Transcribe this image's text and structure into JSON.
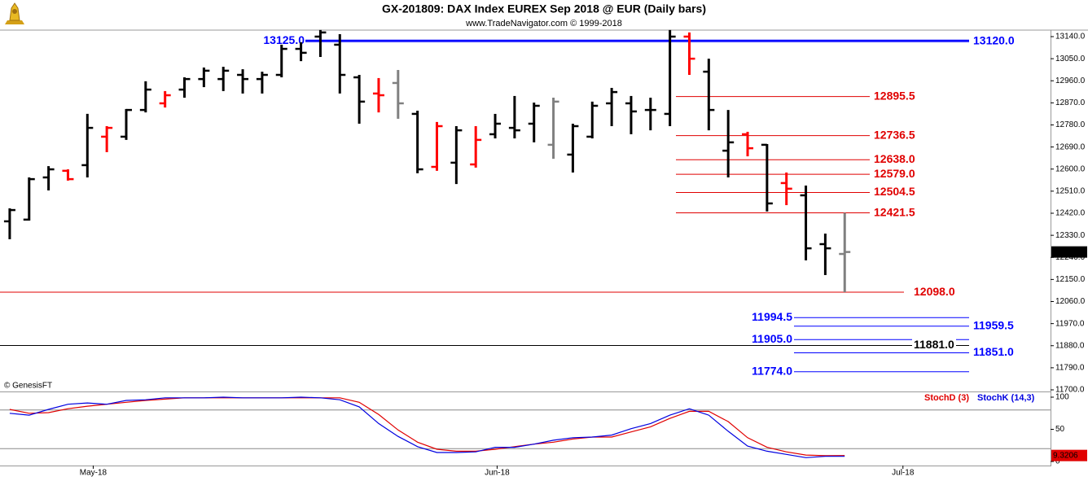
{
  "chart_data": [
    {
      "type": "ohlc",
      "title": "GX-201809:  DAX Index EUREX Sep 2018 @ EUR  (Daily bars)",
      "subtitle": "www.TradeNavigator.com © 1999-2018",
      "source": "© GenesisFT",
      "xlim": [
        -0.5,
        53.6
      ],
      "ylim": [
        11693.4,
        13166.5
      ],
      "yticks": [
        {
          "value": 13140,
          "label": "13140.0"
        },
        {
          "value": 13050,
          "label": "13050.0"
        },
        {
          "value": 12960,
          "label": "12960.0"
        },
        {
          "value": 12870,
          "label": "12870.0"
        },
        {
          "value": 12780,
          "label": "12780.0"
        },
        {
          "value": 12690,
          "label": "12690.0"
        },
        {
          "value": 12600,
          "label": "12600.0"
        },
        {
          "value": 12510,
          "label": "12510.0"
        },
        {
          "value": 12420,
          "label": "12420.0"
        },
        {
          "value": 12330,
          "label": "12330.0"
        },
        {
          "value": 12240,
          "label": "12240.0"
        },
        {
          "value": 12150,
          "label": "12150.0"
        },
        {
          "value": 12060,
          "label": "12060.0"
        },
        {
          "value": 11970,
          "label": "11970.0"
        },
        {
          "value": 11880,
          "label": "11880.0"
        },
        {
          "value": 11790,
          "label": "11790.0"
        },
        {
          "value": 11700,
          "label": "11700.0"
        }
      ],
      "open": [
        12387,
        12394,
        12566,
        12593,
        12616,
        12732,
        12732,
        12841,
        12868,
        12924,
        12967,
        12967,
        12984,
        12967,
        12984,
        13090,
        13140,
        13107,
        12974,
        12908,
        12951,
        12825,
        12609,
        12626,
        12619,
        12742,
        12768,
        12785,
        12699,
        12659,
        12732,
        12868,
        12868,
        12841,
        12825,
        13140,
        12997,
        12675,
        12742,
        12699,
        12543,
        12493,
        12294,
        12254
      ],
      "high": [
        12440,
        12566,
        12612,
        12599,
        12825,
        12775,
        12845,
        12958,
        12918,
        12974,
        13014,
        13017,
        13007,
        12997,
        13107,
        13117,
        13167,
        13150,
        12984,
        12971,
        13004,
        12838,
        12792,
        12775,
        12775,
        12825,
        12898,
        12871,
        12891,
        12785,
        12875,
        12931,
        12898,
        12891,
        13167,
        13157,
        13050,
        12841,
        12752,
        12702,
        12586,
        12533,
        12337,
        12421.5
      ],
      "low": [
        12314,
        12390,
        12513,
        12553,
        12566,
        12669,
        12719,
        12831,
        12851,
        12891,
        12934,
        12918,
        12908,
        12908,
        12974,
        13040,
        13057,
        12908,
        12785,
        12831,
        12805,
        12583,
        12593,
        12539,
        12606,
        12725,
        12725,
        12709,
        12642,
        12586,
        12725,
        12775,
        12742,
        12758,
        12775,
        12984,
        12758,
        12566,
        12652,
        12427,
        12453,
        12228,
        12168,
        12098
      ],
      "close": [
        12433,
        12559,
        12599,
        12559,
        12768,
        12768,
        12841,
        12924,
        12901,
        12967,
        13001,
        13001,
        12967,
        12984,
        13090,
        13074,
        13157,
        12984,
        12875,
        12901,
        12868,
        12599,
        12775,
        12758,
        12719,
        12785,
        12758,
        12858,
        12875,
        12775,
        12858,
        12914,
        12835,
        12841,
        13140,
        13050,
        12841,
        12709,
        12685,
        12460,
        12520,
        12277,
        12277,
        12262
      ],
      "colors": [
        "#000000",
        "#000000",
        "#000000",
        "#ff0000",
        "#000000",
        "#ff0000",
        "#000000",
        "#000000",
        "#ff0000",
        "#000000",
        "#000000",
        "#000000",
        "#000000",
        "#000000",
        "#000000",
        "#000000",
        "#000000",
        "#000000",
        "#000000",
        "#ff0000",
        "#808080",
        "#000000",
        "#ff0000",
        "#000000",
        "#ff0000",
        "#000000",
        "#000000",
        "#000000",
        "#808080",
        "#000000",
        "#000000",
        "#000000",
        "#000000",
        "#000000",
        "#000000",
        "#ff0000",
        "#000000",
        "#000000",
        "#ff0000",
        "#000000",
        "#ff0000",
        "#000000",
        "#000000",
        "#808080"
      ],
      "last_price": {
        "value": 12262,
        "label": "12262.0"
      },
      "levels": [
        {
          "value": 13125,
          "label": "13125.0",
          "color": "#0000ff"
        },
        {
          "value": 13120,
          "label": "13120.0",
          "color": "#0000ff"
        },
        {
          "value": 12895.5,
          "label": "12895.5",
          "color": "#e00000"
        },
        {
          "value": 12736.5,
          "label": "12736.5",
          "color": "#e00000"
        },
        {
          "value": 12638,
          "label": "12638.0",
          "color": "#e00000"
        },
        {
          "value": 12579,
          "label": "12579.0",
          "color": "#e00000"
        },
        {
          "value": 12504.5,
          "label": "12504.5",
          "color": "#e00000"
        },
        {
          "value": 12421.5,
          "label": "12421.5",
          "color": "#e00000"
        },
        {
          "value": 12098,
          "label": "12098.0",
          "color": "#e00000"
        },
        {
          "value": 11994.5,
          "label": "11994.5",
          "color": "#0000ff"
        },
        {
          "value": 11959.5,
          "label": "11959.5",
          "color": "#0000ff"
        },
        {
          "value": 11905,
          "label": "11905.0",
          "color": "#0000ff"
        },
        {
          "value": 11881,
          "label": "11881.0",
          "color": "#000000"
        },
        {
          "value": 11851,
          "label": "11851.0",
          "color": "#0000ff"
        },
        {
          "value": 11774,
          "label": "11774.0",
          "color": "#0000ff"
        }
      ]
    },
    {
      "type": "line",
      "xlim": [
        -0.5,
        53.6
      ],
      "ylim": [
        -6.3,
        107.6
      ],
      "yticks": [
        100,
        50,
        0
      ],
      "hlines": [
        80,
        20
      ],
      "xticks": [
        {
          "value": 4.3,
          "label": "May-18"
        },
        {
          "value": 25.1,
          "label": "Jun-18"
        },
        {
          "value": 46.0,
          "label": "Jul-18"
        }
      ],
      "series": [
        {
          "name": "StochD (3)",
          "color": "#e00000",
          "values": [
            81,
            75,
            76,
            82,
            86,
            89,
            92,
            95,
            97,
            99,
            99,
            99,
            99,
            99,
            99,
            99,
            99,
            99,
            92,
            73,
            49,
            30,
            19,
            16,
            16,
            19,
            23,
            27,
            30,
            35,
            38,
            38,
            46,
            54,
            67,
            78,
            78,
            62,
            37,
            22,
            15,
            10,
            9,
            9.3206
          ]
        },
        {
          "name": "StochK (14,3)",
          "color": "#0000e0",
          "values": [
            75,
            72,
            81,
            89,
            91,
            89,
            95,
            96,
            99,
            99,
            99,
            100,
            99,
            99,
            99,
            100,
            99,
            96,
            85,
            59,
            39,
            23,
            14,
            14,
            15,
            22,
            22,
            27,
            33,
            37,
            38,
            41,
            51,
            59,
            72,
            82,
            72,
            47,
            24,
            16,
            11,
            6,
            8,
            8
          ]
        }
      ]
    }
  ]
}
